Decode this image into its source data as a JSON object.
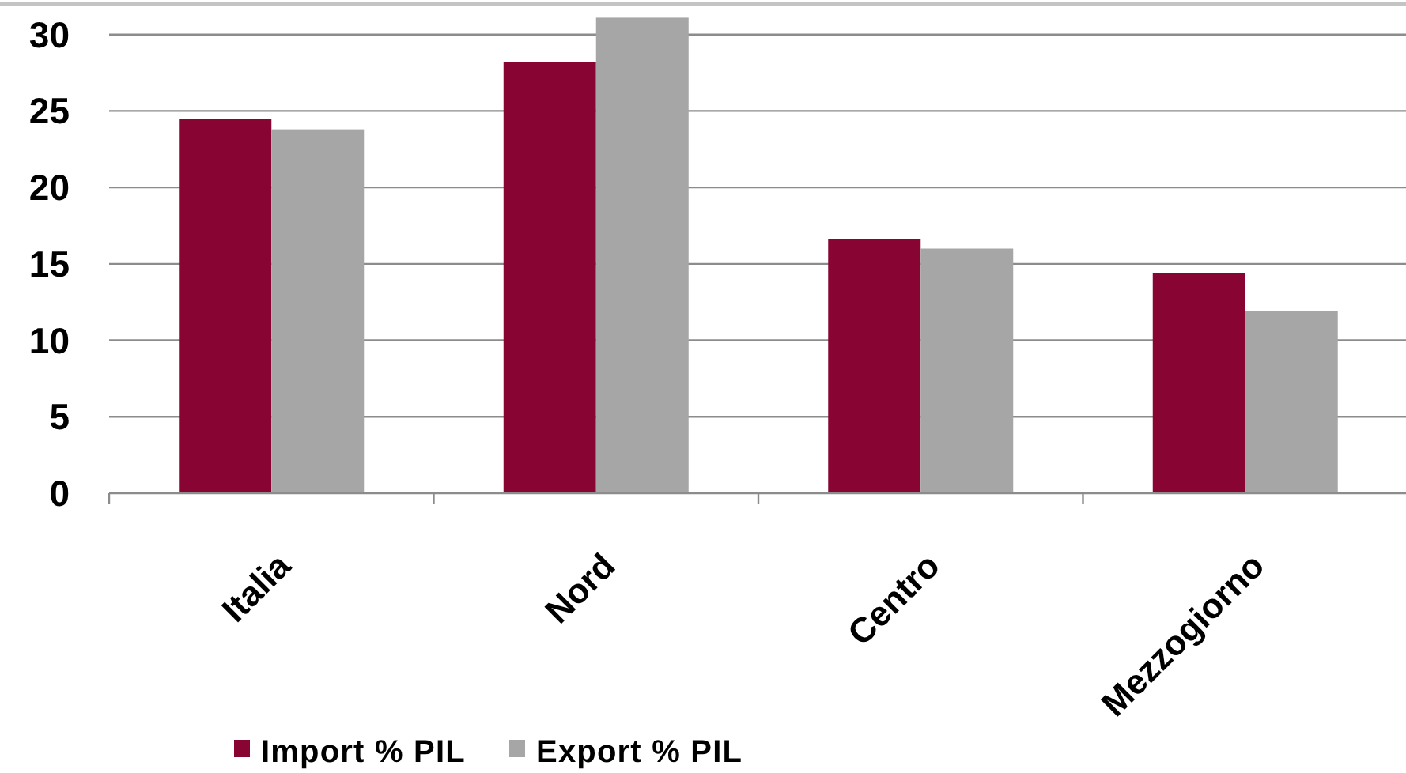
{
  "chart_data": {
    "type": "bar",
    "categories": [
      "Italia",
      "Nord",
      "Centro",
      "Mezzogiorno"
    ],
    "series": [
      {
        "name": "Import % PIL",
        "color": "#870433",
        "values": [
          24.5,
          28.2,
          16.6,
          14.4
        ]
      },
      {
        "name": "Export % PIL",
        "color": "#a6a6a6",
        "values": [
          23.8,
          31.1,
          16.0,
          11.9
        ]
      }
    ],
    "ylim": [
      0,
      32
    ],
    "yticks": [
      0,
      5,
      10,
      15,
      20,
      25,
      30
    ],
    "grid": "y",
    "legend": "bottom"
  }
}
